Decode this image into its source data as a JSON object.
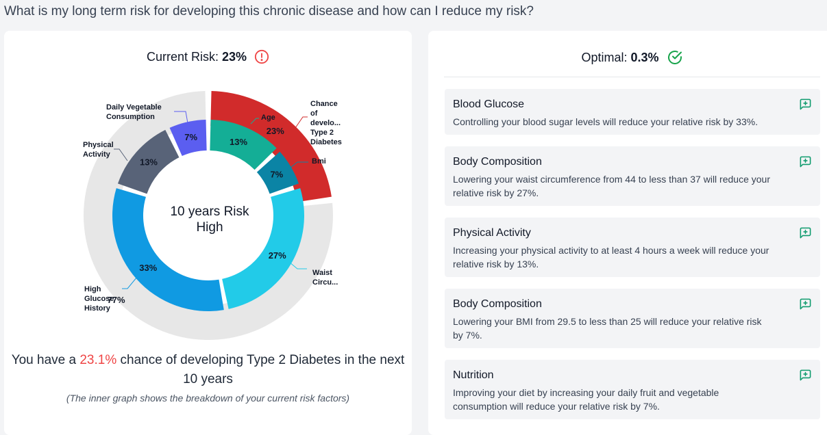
{
  "question": "What is my long term risk for developing this chronic disease and how can I reduce my risk?",
  "current_risk": {
    "label": "Current Risk:",
    "value": "23%",
    "icon": "alert-circle-icon",
    "color": "#ef4444"
  },
  "chart_data": {
    "type": "pie",
    "center_text": [
      "10 years Risk",
      "High"
    ],
    "outer_ring": [
      {
        "name": "Chance of develo... Type 2 Diabetes",
        "value": 23,
        "label": "23%",
        "color": "#d12b2b"
      },
      {
        "name": "",
        "value": 77,
        "label": "77%",
        "color": "#e7e7e7"
      }
    ],
    "inner_ring": [
      {
        "name": "Age",
        "value": 13,
        "label": "13%",
        "color": "#14ae96"
      },
      {
        "name": "Bmi",
        "value": 7,
        "label": "7%",
        "color": "#0b84a5"
      },
      {
        "name": "Waist Circu...",
        "value": 27,
        "label": "27%",
        "color": "#22cbe8"
      },
      {
        "name": "High Glucose History",
        "value": 33,
        "label": "33%",
        "color": "#109ae2"
      },
      {
        "name": "Physical Activity",
        "value": 13,
        "label": "13%",
        "color": "#586378"
      },
      {
        "name": "Daily Vegetable Consumption",
        "value": 7,
        "label": "7%",
        "color": "#5b5ef0"
      }
    ]
  },
  "summary": {
    "prefix": "You have a ",
    "percent": "23.1%",
    "suffix": " chance of developing Type 2 Diabetes in the next 10 years",
    "note": "(The inner graph shows the breakdown of your current risk factors)"
  },
  "optimal": {
    "label": "Optimal:",
    "value": "0.3%",
    "icon": "check-circle-icon",
    "color": "#16a34a"
  },
  "recommendations": [
    {
      "title": "Blood Glucose",
      "description": "Controlling your blood sugar levels will reduce your relative risk by 33%.",
      "icon": "add-comment-icon"
    },
    {
      "title": "Body Composition",
      "description": "Lowering your waist circumference from 44 to less than 37 will reduce your relative risk by 27%.",
      "icon": "add-comment-icon"
    },
    {
      "title": "Physical Activity",
      "description": "Increasing your physical activity to at least 4 hours a week will reduce your relative risk by 13%.",
      "icon": "add-comment-icon"
    },
    {
      "title": "Body Composition",
      "description": "Lowering your BMI from 29.5 to less than 25 will reduce your relative risk by 7%.",
      "icon": "add-comment-icon"
    },
    {
      "title": "Nutrition",
      "description": "Improving your diet by increasing your daily fruit and vegetable consumption will reduce your relative risk by 7%.",
      "icon": "add-comment-icon"
    }
  ]
}
